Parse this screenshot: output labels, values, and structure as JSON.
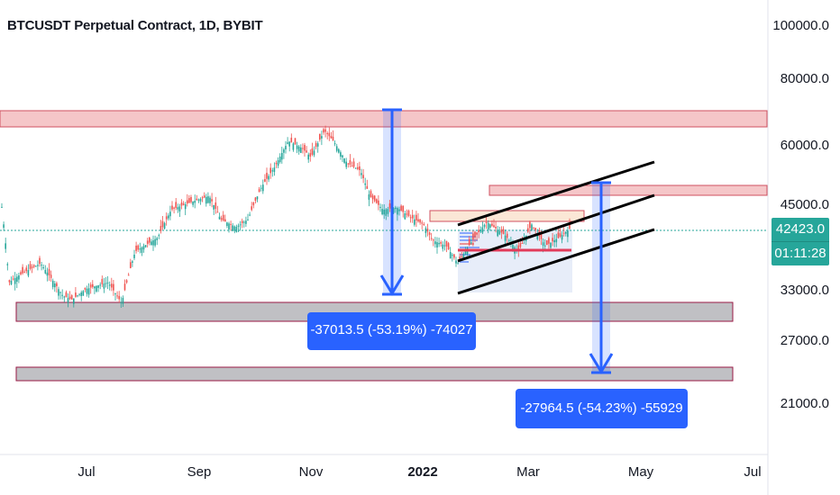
{
  "header": {
    "title": "BTCUSDT Perpetual Contract, 1D, BYBIT"
  },
  "price_axis": {
    "labels": [
      "100000.0",
      "80000.0",
      "60000.0",
      "45000.0",
      "33000.0",
      "27000.0",
      "21000.0"
    ]
  },
  "time_axis": {
    "labels": [
      "Jul",
      "Sep",
      "Nov",
      "2022",
      "Mar",
      "May",
      "Jul"
    ]
  },
  "current_price": {
    "value": "42423.0",
    "countdown": "01:11:28",
    "color": "#26a69a"
  },
  "measurements": [
    {
      "text": "-37013.5 (-53.19%) -74027"
    },
    {
      "text": "-27964.5 (-54.23%) -55929"
    }
  ],
  "colors": {
    "up": "#26a69a",
    "down": "#ef5350",
    "resistance_zone": "#f5c6c8",
    "support_zone": "#c0c0c4",
    "measure": "#2962ff"
  },
  "chart_data": {
    "type": "candlestick",
    "symbol": "BTCUSDT",
    "interval": "1D",
    "exchange": "BYBIT",
    "y_axis_scale": "log",
    "approx_monthly_closes": [
      {
        "month": "2021-06",
        "close": 35000
      },
      {
        "month": "2021-07",
        "close": 41500
      },
      {
        "month": "2021-08",
        "close": 47000
      },
      {
        "month": "2021-09",
        "close": 43800
      },
      {
        "month": "2021-10",
        "close": 61300
      },
      {
        "month": "2021-11",
        "close": 57000
      },
      {
        "month": "2021-12",
        "close": 46300
      },
      {
        "month": "2022-01",
        "close": 38500
      },
      {
        "month": "2022-02",
        "close": 43200
      },
      {
        "month": "2022-03",
        "close": 42423
      }
    ],
    "zones": [
      {
        "kind": "resistance",
        "low": 63500,
        "high": 69000
      },
      {
        "kind": "resistance",
        "low": 48500,
        "high": 51500
      },
      {
        "kind": "support",
        "low": 29000,
        "high": 31500
      },
      {
        "kind": "support",
        "low": 21500,
        "high": 23000
      }
    ]
  }
}
